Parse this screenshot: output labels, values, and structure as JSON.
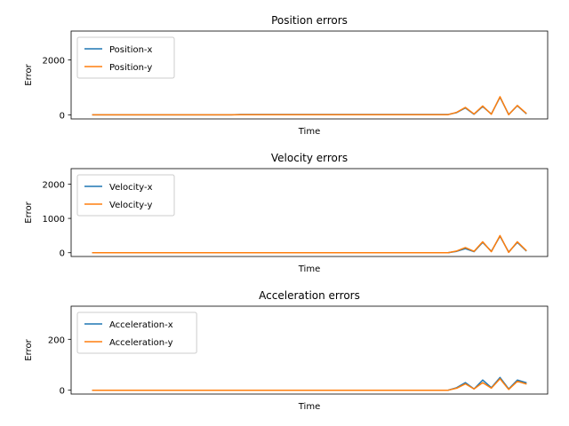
{
  "chart_data": [
    {
      "type": "line",
      "title": "Position errors",
      "xlabel": "Time",
      "ylabel": "Error",
      "xlim": [
        -2.5,
        52.5
      ],
      "ylim": [
        -150,
        3050
      ],
      "yticks": [
        0,
        2000
      ],
      "ytick_labels": [
        "0",
        "2000"
      ],
      "legend": "upper left",
      "grid": false,
      "x": [
        0,
        1,
        2,
        3,
        4,
        5,
        6,
        7,
        8,
        9,
        10,
        11,
        12,
        13,
        14,
        15,
        16,
        17,
        18,
        19,
        20,
        21,
        22,
        23,
        24,
        25,
        26,
        27,
        28,
        29,
        30,
        31,
        32,
        33,
        34,
        35,
        36,
        37,
        38,
        39,
        40,
        41,
        42,
        43,
        44,
        45,
        46,
        47,
        48,
        49,
        50
      ],
      "series": [
        {
          "name": "Position-x",
          "color": "#1f77b4",
          "values": [
            0,
            0,
            0,
            0,
            0,
            0,
            0,
            0,
            0,
            0,
            0,
            0,
            0,
            0,
            0,
            0,
            0,
            10,
            10,
            10,
            10,
            10,
            10,
            10,
            10,
            10,
            10,
            10,
            10,
            10,
            10,
            10,
            10,
            10,
            10,
            10,
            10,
            10,
            10,
            10,
            10,
            10,
            80,
            250,
            20,
            300,
            30,
            640,
            10,
            330,
            50
          ]
        },
        {
          "name": "Position-y",
          "color": "#ff7f0e",
          "values": [
            0,
            0,
            0,
            0,
            0,
            0,
            0,
            0,
            0,
            0,
            0,
            0,
            0,
            0,
            0,
            0,
            0,
            5,
            5,
            5,
            5,
            5,
            5,
            5,
            5,
            5,
            5,
            5,
            5,
            5,
            5,
            5,
            5,
            5,
            5,
            5,
            5,
            5,
            5,
            5,
            5,
            5,
            90,
            270,
            30,
            320,
            20,
            660,
            5,
            340,
            60
          ]
        }
      ]
    },
    {
      "type": "line",
      "title": "Velocity errors",
      "xlabel": "Time",
      "ylabel": "Error",
      "xlim": [
        -2.5,
        52.5
      ],
      "ylim": [
        -110,
        2450
      ],
      "yticks": [
        0,
        1000,
        2000
      ],
      "ytick_labels": [
        "0",
        "1000",
        "2000"
      ],
      "legend": "upper left",
      "grid": false,
      "x": [
        0,
        1,
        2,
        3,
        4,
        5,
        6,
        7,
        8,
        9,
        10,
        11,
        12,
        13,
        14,
        15,
        16,
        17,
        18,
        19,
        20,
        21,
        22,
        23,
        24,
        25,
        26,
        27,
        28,
        29,
        30,
        31,
        32,
        33,
        34,
        35,
        36,
        37,
        38,
        39,
        40,
        41,
        42,
        43,
        44,
        45,
        46,
        47,
        48,
        49,
        50
      ],
      "series": [
        {
          "name": "Velocity-x",
          "color": "#1f77b4",
          "values": [
            0,
            0,
            0,
            0,
            0,
            0,
            0,
            0,
            0,
            0,
            0,
            0,
            0,
            0,
            0,
            0,
            0,
            0,
            0,
            0,
            0,
            0,
            0,
            0,
            0,
            0,
            0,
            0,
            0,
            0,
            0,
            0,
            0,
            0,
            0,
            0,
            0,
            0,
            0,
            0,
            0,
            0,
            40,
            120,
            30,
            300,
            40,
            480,
            20,
            300,
            60
          ]
        },
        {
          "name": "Velocity-y",
          "color": "#ff7f0e",
          "values": [
            0,
            0,
            0,
            0,
            0,
            0,
            0,
            0,
            0,
            0,
            0,
            0,
            0,
            0,
            0,
            0,
            0,
            0,
            0,
            0,
            0,
            0,
            0,
            0,
            0,
            0,
            0,
            0,
            0,
            0,
            0,
            0,
            0,
            0,
            0,
            0,
            0,
            0,
            0,
            0,
            0,
            0,
            50,
            150,
            40,
            320,
            30,
            500,
            10,
            320,
            70
          ]
        }
      ]
    },
    {
      "type": "line",
      "title": "Acceleration errors",
      "xlabel": "Time",
      "ylabel": "Error",
      "xlim": [
        -2.5,
        52.5
      ],
      "ylim": [
        -15,
        330
      ],
      "yticks": [
        0,
        200
      ],
      "ytick_labels": [
        "0",
        "200"
      ],
      "legend": "upper left",
      "grid": false,
      "x": [
        0,
        1,
        2,
        3,
        4,
        5,
        6,
        7,
        8,
        9,
        10,
        11,
        12,
        13,
        14,
        15,
        16,
        17,
        18,
        19,
        20,
        21,
        22,
        23,
        24,
        25,
        26,
        27,
        28,
        29,
        30,
        31,
        32,
        33,
        34,
        35,
        36,
        37,
        38,
        39,
        40,
        41,
        42,
        43,
        44,
        45,
        46,
        47,
        48,
        49,
        50
      ],
      "series": [
        {
          "name": "Acceleration-x",
          "color": "#1f77b4",
          "values": [
            0,
            0,
            0,
            0,
            0,
            0,
            0,
            0,
            0,
            0,
            0,
            0,
            0,
            0,
            0,
            0,
            0,
            0,
            0,
            0,
            0,
            0,
            0,
            0,
            0,
            0,
            0,
            0,
            0,
            0,
            0,
            0,
            0,
            0,
            0,
            0,
            0,
            0,
            0,
            0,
            0,
            0,
            10,
            30,
            5,
            40,
            10,
            50,
            5,
            40,
            30
          ]
        },
        {
          "name": "Acceleration-y",
          "color": "#ff7f0e",
          "values": [
            0,
            0,
            0,
            0,
            0,
            0,
            0,
            0,
            0,
            0,
            0,
            0,
            0,
            0,
            0,
            0,
            0,
            0,
            0,
            0,
            0,
            0,
            0,
            0,
            0,
            0,
            0,
            0,
            0,
            0,
            0,
            0,
            0,
            0,
            0,
            0,
            0,
            0,
            0,
            0,
            0,
            0,
            8,
            25,
            5,
            30,
            8,
            45,
            3,
            35,
            25
          ]
        }
      ]
    }
  ]
}
